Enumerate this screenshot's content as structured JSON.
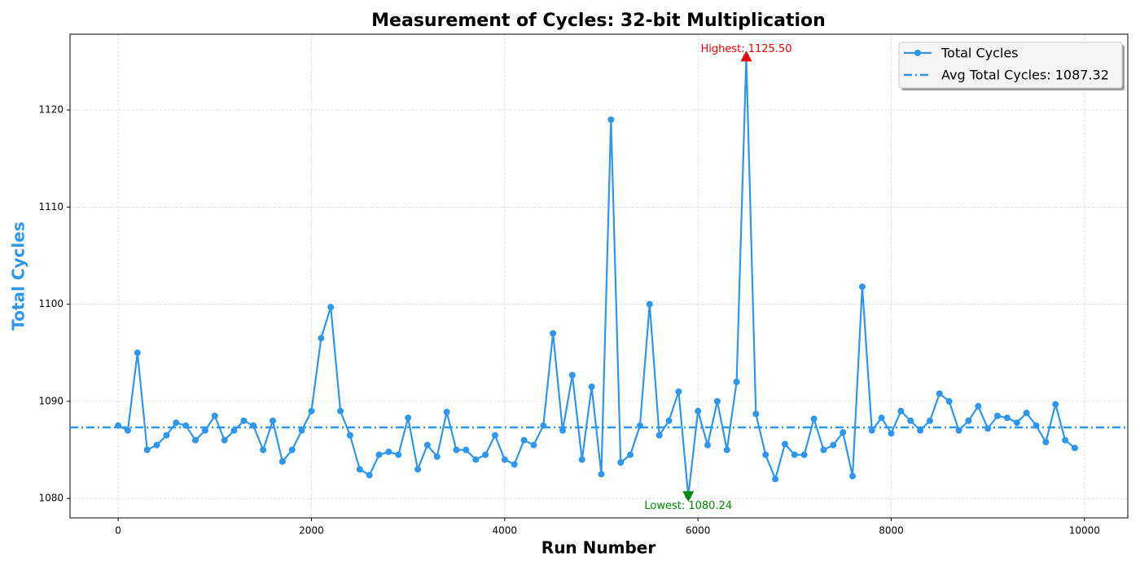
{
  "chart_data": {
    "type": "line",
    "title": "Measurement of Cycles: 32-bit Multiplication",
    "x_label": "Run Number",
    "y_label": "Total Cycles",
    "x": [
      0,
      100,
      200,
      300,
      400,
      500,
      600,
      700,
      800,
      900,
      1000,
      1100,
      1200,
      1300,
      1400,
      1500,
      1600,
      1700,
      1800,
      1900,
      2000,
      2100,
      2200,
      2300,
      2400,
      2500,
      2600,
      2700,
      2800,
      2900,
      3000,
      3100,
      3200,
      3300,
      3400,
      3500,
      3600,
      3700,
      3800,
      3900,
      4000,
      4100,
      4200,
      4300,
      4400,
      4500,
      4600,
      4700,
      4800,
      4900,
      5000,
      5100,
      5200,
      5300,
      5400,
      5500,
      5600,
      5700,
      5800,
      5900,
      6000,
      6100,
      6200,
      6300,
      6400,
      6500,
      6600,
      6700,
      6800,
      6900,
      7000,
      7100,
      7200,
      7300,
      7400,
      7500,
      7600,
      7700,
      7800,
      7900,
      8000,
      8100,
      8200,
      8300,
      8400,
      8500,
      8600,
      8700,
      8800,
      8900,
      9000,
      9100,
      9200,
      9300,
      9400,
      9500,
      9600,
      9700,
      9800,
      9900
    ],
    "series": [
      {
        "name": "Total Cycles",
        "color": "#2f96ee",
        "values": [
          1087.5,
          1087,
          1095,
          1085,
          1085.5,
          1086.5,
          1087.8,
          1087.5,
          1086,
          1087,
          1088.5,
          1086,
          1087,
          1088,
          1087.5,
          1085,
          1088,
          1083.8,
          1085,
          1087,
          1089,
          1096.5,
          1099.7,
          1089,
          1086.5,
          1083,
          1082.4,
          1084.5,
          1084.8,
          1084.5,
          1088.3,
          1083,
          1085.5,
          1084.3,
          1088.9,
          1085,
          1085,
          1084,
          1084.5,
          1086.5,
          1084,
          1083.5,
          1086,
          1085.5,
          1087.5,
          1097,
          1087,
          1092.7,
          1084,
          1091.5,
          1082.5,
          1119,
          1083.7,
          1084.5,
          1087.5,
          1100,
          1086.5,
          1088,
          1091,
          1080.24,
          1089,
          1085.5,
          1090,
          1085,
          1092,
          1125.5,
          1088.7,
          1084.5,
          1082,
          1085.6,
          1084.5,
          1084.5,
          1088.2,
          1085,
          1085.5,
          1086.8,
          1082.3,
          1101.8,
          1087,
          1088.3,
          1086.7,
          1089,
          1088,
          1087,
          1088,
          1090.8,
          1090,
          1087,
          1088,
          1089.5,
          1087.2,
          1088.5,
          1088.3,
          1087.8,
          1088.8,
          1087.5,
          1085.8,
          1089.7,
          1086,
          1085.2
        ]
      }
    ],
    "average": {
      "name": "Avg Total Cycles: 1087.32",
      "value": 1087.32,
      "color": "#2f96ee"
    },
    "annotations": [
      {
        "text": "Highest: 1125.50",
        "x": 6500,
        "y": 1125.5,
        "color": "#ee0000",
        "direction": "up"
      },
      {
        "text": "Lowest: 1080.24",
        "x": 5900,
        "y": 1080.24,
        "color": "#008800",
        "direction": "down"
      }
    ],
    "xlim": [
      -498,
      10448
    ],
    "ylim": [
      1078,
      1127.8
    ],
    "xticks": [
      0,
      2000,
      4000,
      6000,
      8000,
      10000
    ],
    "yticks": [
      1080,
      1090,
      1100,
      1110,
      1120
    ],
    "grid": true,
    "legend": "upper right"
  }
}
